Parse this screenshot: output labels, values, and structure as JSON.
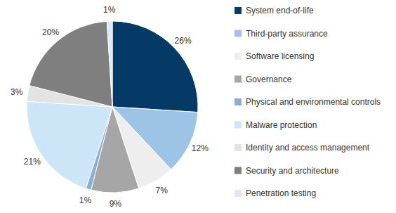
{
  "chart_data": {
    "type": "pie",
    "categories": [
      "System end-of-life",
      "Third-party assurance",
      "Software licensing",
      "Governance",
      "Physical and environmental controls",
      "Malware protection",
      "Identity and access management",
      "Security and architecture",
      "Penetration testing"
    ],
    "values": [
      26,
      12,
      7,
      9,
      1,
      21,
      3,
      20,
      1
    ],
    "value_labels": [
      "26%",
      "12%",
      "7%",
      "9%",
      "1%",
      "21%",
      "3%",
      "20%",
      "1%"
    ],
    "colors": [
      "#063a66",
      "#9dc3e6",
      "#eeeeee",
      "#a6a6a6",
      "#8eadd2",
      "#cce6f8",
      "#e3e3e3",
      "#7f7f7f",
      "#dde9f5"
    ],
    "data_labels": true,
    "legend": "right"
  }
}
